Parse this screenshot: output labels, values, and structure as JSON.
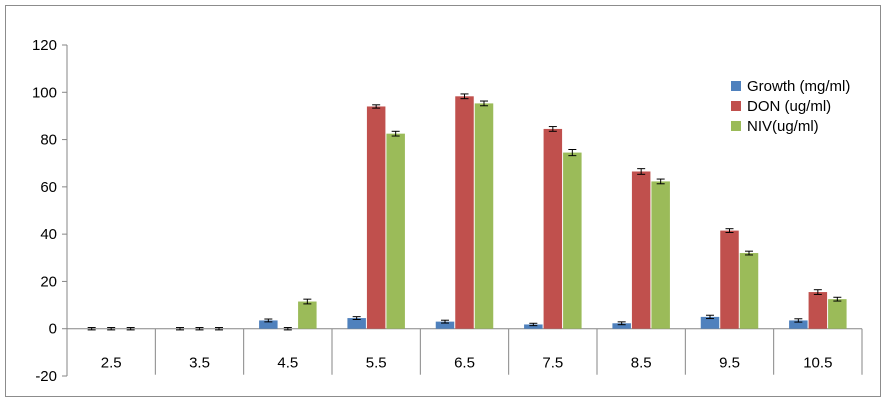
{
  "chart_data": {
    "type": "bar",
    "title": "",
    "xlabel": "",
    "ylabel": "",
    "categories": [
      "2.5",
      "3.5",
      "4.5",
      "5.5",
      "6.5",
      "7.5",
      "8.5",
      "9.5",
      "10.5"
    ],
    "ylim": [
      -20,
      120
    ],
    "yticks": [
      "-20",
      "0",
      "20",
      "40",
      "60",
      "80",
      "100",
      "120"
    ],
    "grid": false,
    "legend_position": "right",
    "error_bars": true,
    "series": [
      {
        "name": "Growth (mg/ml)",
        "color": "#4f81bd",
        "values": [
          0,
          0,
          3.5,
          4.5,
          3.0,
          1.8,
          2.3,
          5.0,
          3.5
        ],
        "errors": [
          0.5,
          0.5,
          0.6,
          0.6,
          0.6,
          0.5,
          0.6,
          0.7,
          0.7
        ]
      },
      {
        "name": "DON (ug/ml)",
        "color": "#c0504d",
        "values": [
          0,
          0,
          0,
          94,
          98.3,
          84.5,
          66.5,
          41.5,
          15.5
        ],
        "errors": [
          0.5,
          0.5,
          0.5,
          0.7,
          1.0,
          1.0,
          1.2,
          0.8,
          1.0
        ]
      },
      {
        "name": "NIV(ug/ml)",
        "color": "#9bbb59",
        "values": [
          0,
          0,
          11.5,
          82.5,
          95.3,
          74.5,
          62.3,
          32,
          12.5
        ],
        "errors": [
          0.5,
          0.5,
          1.0,
          1.0,
          1.0,
          1.3,
          1.0,
          0.8,
          0.8
        ]
      }
    ]
  }
}
